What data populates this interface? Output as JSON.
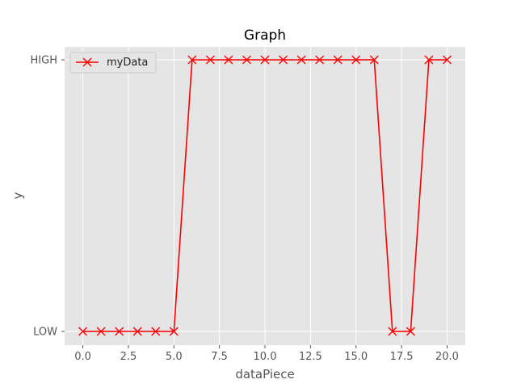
{
  "chart_data": {
    "type": "line",
    "title": "Graph",
    "xlabel": "dataPiece",
    "ylabel": "y",
    "xlim": [
      -1,
      21
    ],
    "x_ticks": [
      0.0,
      2.5,
      5.0,
      7.5,
      10.0,
      12.5,
      15.0,
      17.5,
      20.0
    ],
    "x_tick_labels": [
      "0.0",
      "2.5",
      "5.0",
      "7.5",
      "10.0",
      "12.5",
      "15.0",
      "17.5",
      "20.0"
    ],
    "y_categories": [
      "LOW",
      "HIGH"
    ],
    "grid": true,
    "legend": {
      "position": "top-left",
      "entries": [
        "myData"
      ]
    },
    "series": [
      {
        "name": "myData",
        "color": "#ff0000",
        "marker": "x",
        "x": [
          0,
          1,
          2,
          3,
          4,
          5,
          6,
          7,
          8,
          9,
          10,
          11,
          12,
          13,
          14,
          15,
          16,
          17,
          18,
          19,
          20
        ],
        "y": [
          "LOW",
          "LOW",
          "LOW",
          "LOW",
          "LOW",
          "LOW",
          "HIGH",
          "HIGH",
          "HIGH",
          "HIGH",
          "HIGH",
          "HIGH",
          "HIGH",
          "HIGH",
          "HIGH",
          "HIGH",
          "HIGH",
          "LOW",
          "LOW",
          "HIGH",
          "HIGH"
        ]
      }
    ]
  }
}
